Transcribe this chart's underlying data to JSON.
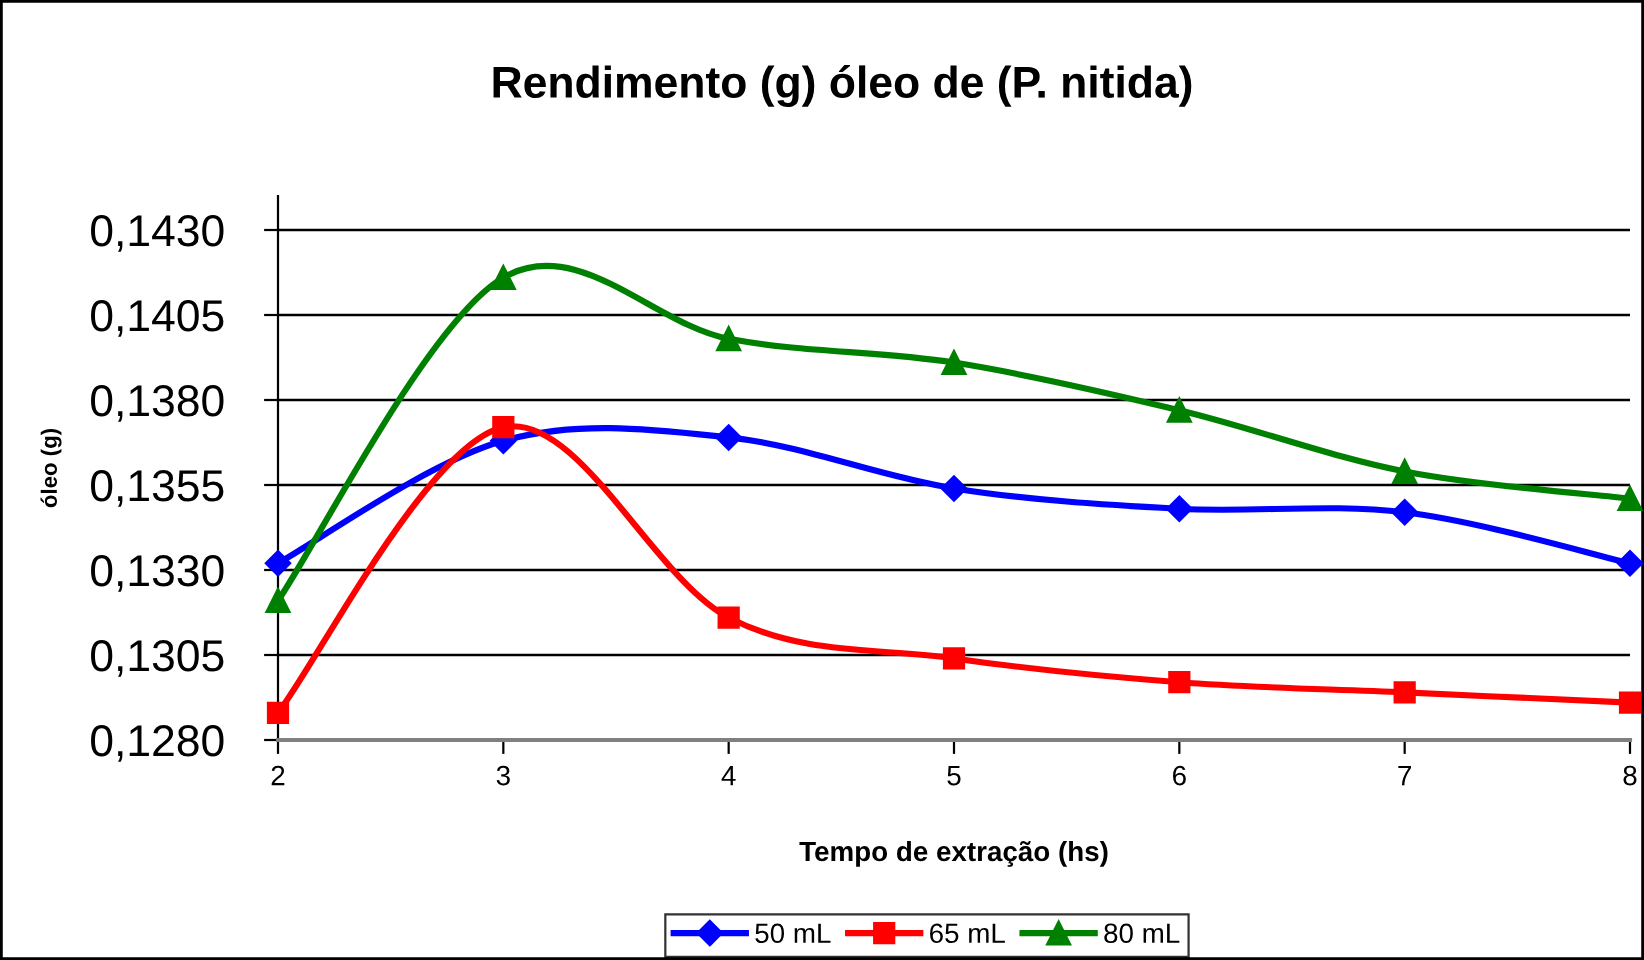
{
  "chart_data": {
    "type": "line",
    "title": "Rendimento (g) óleo de (P. nitida)",
    "xlabel": "Tempo de extração (hs)",
    "ylabel": "óleo (g)",
    "x": [
      2,
      3,
      4,
      5,
      6,
      7,
      8
    ],
    "series": [
      {
        "name": "50 mL",
        "color": "#0000ff",
        "marker": "diamond",
        "values": [
          0.1332,
          0.1368,
          0.1369,
          0.1354,
          0.1348,
          0.1347,
          0.1332
        ]
      },
      {
        "name": "65 mL",
        "color": "#ff0000",
        "marker": "square",
        "values": [
          0.1288,
          0.1372,
          0.1316,
          0.1304,
          0.1297,
          0.1294,
          0.1291
        ]
      },
      {
        "name": "80 mL",
        "color": "#008000",
        "marker": "triangle",
        "values": [
          0.1321,
          0.1416,
          0.1398,
          0.1391,
          0.1377,
          0.1359,
          0.1351
        ]
      }
    ],
    "xlim": [
      2,
      8
    ],
    "xticks": [
      2,
      3,
      4,
      5,
      6,
      7,
      8
    ],
    "ylim": [
      0.128,
      0.144
    ],
    "yticks": [
      {
        "value": 0.128,
        "label": "0,1280"
      },
      {
        "value": 0.1305,
        "label": "0,1305"
      },
      {
        "value": 0.133,
        "label": "0,1330"
      },
      {
        "value": 0.1355,
        "label": "0,1355"
      },
      {
        "value": 0.138,
        "label": "0,1380"
      },
      {
        "value": 0.1405,
        "label": "0,1405"
      },
      {
        "value": 0.143,
        "label": "0,1430"
      }
    ],
    "grid": "y",
    "legend": "bottom",
    "line_style": "solid"
  }
}
